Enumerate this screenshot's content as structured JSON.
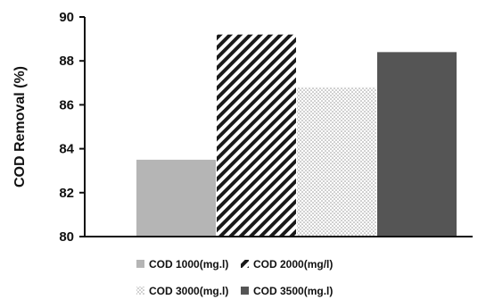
{
  "chart_data": {
    "type": "bar",
    "title": "",
    "xlabel": "",
    "ylabel": "COD Removal (%)",
    "ylim": [
      80,
      90
    ],
    "yticks": [
      80,
      82,
      84,
      86,
      88,
      90
    ],
    "grid": false,
    "legend_position": "bottom",
    "series": [
      {
        "name": "COD 1000(mg.l)",
        "value": 83.5,
        "color": "#b5b5b5",
        "pattern": "solid-light-gray"
      },
      {
        "name": "COD 2000(mg/l)",
        "value": 89.2,
        "color": "#1a1a1a",
        "pattern": "diagonal-stripes"
      },
      {
        "name": "COD 3000(mg.l)",
        "value": 86.8,
        "color": "#9a9a9a",
        "pattern": "dots"
      },
      {
        "name": "COD 3500(mg.l)",
        "value": 88.4,
        "color": "#555555",
        "pattern": "solid-dark-gray"
      }
    ]
  }
}
